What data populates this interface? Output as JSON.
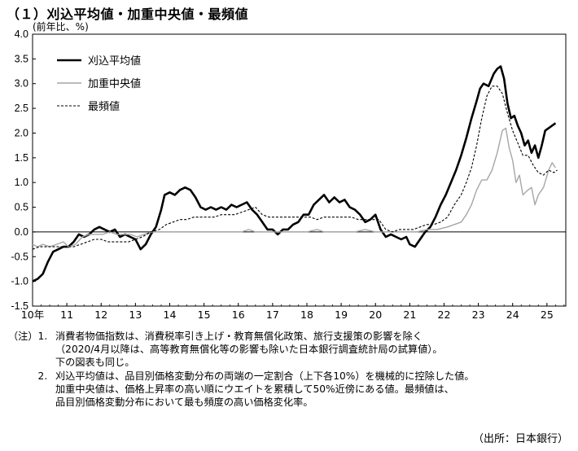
{
  "title": "（１）刈込平均値・加重中央値・最頻値",
  "chart_data": {
    "type": "line",
    "title": "（１）刈込平均値・加重中央値・最頻値",
    "ylabel": "(前年比、%)",
    "xlabel": "",
    "ylim": [
      -1.5,
      4.0
    ],
    "yticks": [
      "4.0",
      "3.5",
      "3.0",
      "2.5",
      "2.0",
      "1.5",
      "1.0",
      "0.5",
      "0.0",
      "-0.5",
      "-1.0",
      "-1.5"
    ],
    "xlim": [
      2010.0,
      2025.55
    ],
    "xtick_labels": [
      {
        "x": 2010,
        "label": "10年"
      },
      {
        "x": 2011,
        "label": "11"
      },
      {
        "x": 2012,
        "label": "12"
      },
      {
        "x": 2013,
        "label": "13"
      },
      {
        "x": 2014,
        "label": "14"
      },
      {
        "x": 2015,
        "label": "15"
      },
      {
        "x": 2016,
        "label": "16"
      },
      {
        "x": 2017,
        "label": "17"
      },
      {
        "x": 2018,
        "label": "18"
      },
      {
        "x": 2019,
        "label": "19"
      },
      {
        "x": 2020,
        "label": "20"
      },
      {
        "x": 2021,
        "label": "21"
      },
      {
        "x": 2022,
        "label": "22"
      },
      {
        "x": 2023,
        "label": "23"
      },
      {
        "x": 2024,
        "label": "24"
      },
      {
        "x": 2025,
        "label": "25"
      }
    ],
    "legend_position": "top-left",
    "grid": false,
    "series": [
      {
        "name": "刈込平均値",
        "color": "#000000",
        "style": "solid-thick",
        "points": [
          [
            2010.0,
            -1.0
          ],
          [
            2010.15,
            -0.95
          ],
          [
            2010.3,
            -0.85
          ],
          [
            2010.45,
            -0.6
          ],
          [
            2010.6,
            -0.4
          ],
          [
            2010.75,
            -0.35
          ],
          [
            2010.9,
            -0.3
          ],
          [
            2011.05,
            -0.3
          ],
          [
            2011.2,
            -0.2
          ],
          [
            2011.35,
            -0.05
          ],
          [
            2011.5,
            -0.1
          ],
          [
            2011.65,
            -0.05
          ],
          [
            2011.8,
            0.05
          ],
          [
            2011.95,
            0.1
          ],
          [
            2012.1,
            0.05
          ],
          [
            2012.25,
            0.0
          ],
          [
            2012.4,
            0.05
          ],
          [
            2012.55,
            -0.1
          ],
          [
            2012.7,
            -0.05
          ],
          [
            2012.85,
            -0.1
          ],
          [
            2013.0,
            -0.15
          ],
          [
            2013.15,
            -0.35
          ],
          [
            2013.3,
            -0.25
          ],
          [
            2013.45,
            -0.05
          ],
          [
            2013.6,
            0.1
          ],
          [
            2013.75,
            0.45
          ],
          [
            2013.85,
            0.75
          ],
          [
            2014.0,
            0.8
          ],
          [
            2014.15,
            0.75
          ],
          [
            2014.3,
            0.85
          ],
          [
            2014.45,
            0.9
          ],
          [
            2014.6,
            0.85
          ],
          [
            2014.75,
            0.7
          ],
          [
            2014.9,
            0.5
          ],
          [
            2015.05,
            0.45
          ],
          [
            2015.2,
            0.5
          ],
          [
            2015.35,
            0.45
          ],
          [
            2015.5,
            0.5
          ],
          [
            2015.65,
            0.45
          ],
          [
            2015.8,
            0.55
          ],
          [
            2015.95,
            0.5
          ],
          [
            2016.1,
            0.55
          ],
          [
            2016.25,
            0.6
          ],
          [
            2016.4,
            0.45
          ],
          [
            2016.55,
            0.35
          ],
          [
            2016.7,
            0.2
          ],
          [
            2016.85,
            0.05
          ],
          [
            2017.0,
            0.05
          ],
          [
            2017.15,
            -0.05
          ],
          [
            2017.3,
            0.05
          ],
          [
            2017.45,
            0.05
          ],
          [
            2017.6,
            0.15
          ],
          [
            2017.75,
            0.2
          ],
          [
            2017.9,
            0.35
          ],
          [
            2018.05,
            0.35
          ],
          [
            2018.2,
            0.55
          ],
          [
            2018.35,
            0.65
          ],
          [
            2018.5,
            0.75
          ],
          [
            2018.65,
            0.6
          ],
          [
            2018.8,
            0.7
          ],
          [
            2018.95,
            0.6
          ],
          [
            2019.1,
            0.65
          ],
          [
            2019.25,
            0.5
          ],
          [
            2019.4,
            0.45
          ],
          [
            2019.55,
            0.35
          ],
          [
            2019.7,
            0.2
          ],
          [
            2019.85,
            0.25
          ],
          [
            2020.0,
            0.35
          ],
          [
            2020.15,
            0.05
          ],
          [
            2020.3,
            -0.1
          ],
          [
            2020.45,
            -0.05
          ],
          [
            2020.6,
            -0.1
          ],
          [
            2020.75,
            -0.15
          ],
          [
            2020.9,
            -0.1
          ],
          [
            2021.0,
            -0.25
          ],
          [
            2021.15,
            -0.3
          ],
          [
            2021.3,
            -0.15
          ],
          [
            2021.45,
            0.0
          ],
          [
            2021.6,
            0.1
          ],
          [
            2021.75,
            0.3
          ],
          [
            2021.9,
            0.55
          ],
          [
            2022.05,
            0.75
          ],
          [
            2022.2,
            1.0
          ],
          [
            2022.35,
            1.25
          ],
          [
            2022.5,
            1.55
          ],
          [
            2022.65,
            1.9
          ],
          [
            2022.8,
            2.3
          ],
          [
            2022.95,
            2.65
          ],
          [
            2023.05,
            2.9
          ],
          [
            2023.15,
            3.0
          ],
          [
            2023.3,
            2.95
          ],
          [
            2023.45,
            3.2
          ],
          [
            2023.55,
            3.3
          ],
          [
            2023.65,
            3.35
          ],
          [
            2023.75,
            3.1
          ],
          [
            2023.85,
            2.6
          ],
          [
            2023.95,
            2.3
          ],
          [
            2024.05,
            2.35
          ],
          [
            2024.15,
            2.15
          ],
          [
            2024.25,
            2.0
          ],
          [
            2024.35,
            1.75
          ],
          [
            2024.45,
            1.85
          ],
          [
            2024.55,
            1.6
          ],
          [
            2024.65,
            1.75
          ],
          [
            2024.75,
            1.5
          ],
          [
            2024.85,
            1.75
          ],
          [
            2024.95,
            2.05
          ],
          [
            2025.05,
            2.1
          ],
          [
            2025.15,
            2.15
          ],
          [
            2025.25,
            2.2
          ]
        ]
      },
      {
        "name": "加重中央値",
        "color": "#a6a6a6",
        "style": "solid-thin",
        "points": [
          [
            2010.0,
            -0.25
          ],
          [
            2010.15,
            -0.3
          ],
          [
            2010.3,
            -0.25
          ],
          [
            2010.5,
            -0.3
          ],
          [
            2010.7,
            -0.25
          ],
          [
            2010.9,
            -0.2
          ],
          [
            2011.05,
            -0.3
          ],
          [
            2011.25,
            -0.25
          ],
          [
            2011.45,
            -0.1
          ],
          [
            2011.65,
            -0.05
          ],
          [
            2011.85,
            -0.05
          ],
          [
            2012.05,
            -0.05
          ],
          [
            2012.25,
            0.0
          ],
          [
            2012.45,
            -0.05
          ],
          [
            2012.65,
            -0.05
          ],
          [
            2012.85,
            -0.05
          ],
          [
            2013.05,
            -0.1
          ],
          [
            2013.25,
            -0.05
          ],
          [
            2013.5,
            0.0
          ],
          [
            2013.75,
            0.0
          ],
          [
            2014.0,
            0.0
          ],
          [
            2014.3,
            0.0
          ],
          [
            2014.6,
            0.0
          ],
          [
            2014.9,
            0.0
          ],
          [
            2015.2,
            0.0
          ],
          [
            2015.5,
            0.0
          ],
          [
            2015.8,
            0.0
          ],
          [
            2016.1,
            0.0
          ],
          [
            2016.3,
            0.05
          ],
          [
            2016.5,
            0.0
          ],
          [
            2016.8,
            0.0
          ],
          [
            2017.1,
            0.0
          ],
          [
            2017.4,
            0.0
          ],
          [
            2017.7,
            0.0
          ],
          [
            2018.0,
            0.0
          ],
          [
            2018.3,
            0.05
          ],
          [
            2018.5,
            0.0
          ],
          [
            2018.8,
            0.0
          ],
          [
            2019.1,
            0.0
          ],
          [
            2019.4,
            0.0
          ],
          [
            2019.7,
            0.05
          ],
          [
            2020.0,
            0.0
          ],
          [
            2020.3,
            0.0
          ],
          [
            2020.6,
            0.0
          ],
          [
            2020.9,
            0.0
          ],
          [
            2021.2,
            0.0
          ],
          [
            2021.5,
            0.05
          ],
          [
            2021.8,
            0.05
          ],
          [
            2022.1,
            0.1
          ],
          [
            2022.3,
            0.15
          ],
          [
            2022.5,
            0.2
          ],
          [
            2022.65,
            0.35
          ],
          [
            2022.8,
            0.55
          ],
          [
            2022.95,
            0.85
          ],
          [
            2023.1,
            1.05
          ],
          [
            2023.25,
            1.05
          ],
          [
            2023.4,
            1.25
          ],
          [
            2023.55,
            1.6
          ],
          [
            2023.7,
            2.05
          ],
          [
            2023.8,
            2.1
          ],
          [
            2023.9,
            1.7
          ],
          [
            2024.0,
            1.45
          ],
          [
            2024.1,
            1.0
          ],
          [
            2024.2,
            1.15
          ],
          [
            2024.3,
            0.75
          ],
          [
            2024.45,
            0.85
          ],
          [
            2024.55,
            0.9
          ],
          [
            2024.65,
            0.55
          ],
          [
            2024.75,
            0.75
          ],
          [
            2024.9,
            0.9
          ],
          [
            2025.05,
            1.25
          ],
          [
            2025.15,
            1.4
          ],
          [
            2025.25,
            1.3
          ]
        ]
      },
      {
        "name": "最頻値",
        "color": "#000000",
        "style": "dashed",
        "points": [
          [
            2010.0,
            -0.35
          ],
          [
            2010.2,
            -0.3
          ],
          [
            2010.4,
            -0.3
          ],
          [
            2010.6,
            -0.3
          ],
          [
            2010.8,
            -0.3
          ],
          [
            2011.0,
            -0.3
          ],
          [
            2011.2,
            -0.3
          ],
          [
            2011.4,
            -0.25
          ],
          [
            2011.6,
            -0.2
          ],
          [
            2011.8,
            -0.15
          ],
          [
            2012.0,
            -0.15
          ],
          [
            2012.2,
            -0.2
          ],
          [
            2012.4,
            -0.2
          ],
          [
            2012.6,
            -0.2
          ],
          [
            2012.8,
            -0.2
          ],
          [
            2013.0,
            -0.15
          ],
          [
            2013.2,
            -0.1
          ],
          [
            2013.45,
            0.0
          ],
          [
            2013.7,
            0.05
          ],
          [
            2013.9,
            0.15
          ],
          [
            2014.1,
            0.2
          ],
          [
            2014.3,
            0.25
          ],
          [
            2014.5,
            0.25
          ],
          [
            2014.7,
            0.3
          ],
          [
            2014.9,
            0.3
          ],
          [
            2015.1,
            0.3
          ],
          [
            2015.3,
            0.3
          ],
          [
            2015.5,
            0.35
          ],
          [
            2015.7,
            0.35
          ],
          [
            2015.9,
            0.35
          ],
          [
            2016.1,
            0.4
          ],
          [
            2016.3,
            0.45
          ],
          [
            2016.5,
            0.5
          ],
          [
            2016.7,
            0.35
          ],
          [
            2016.9,
            0.3
          ],
          [
            2017.1,
            0.3
          ],
          [
            2017.3,
            0.3
          ],
          [
            2017.5,
            0.3
          ],
          [
            2017.7,
            0.3
          ],
          [
            2017.9,
            0.3
          ],
          [
            2018.1,
            0.3
          ],
          [
            2018.3,
            0.25
          ],
          [
            2018.5,
            0.3
          ],
          [
            2018.7,
            0.3
          ],
          [
            2018.9,
            0.3
          ],
          [
            2019.1,
            0.3
          ],
          [
            2019.3,
            0.3
          ],
          [
            2019.5,
            0.25
          ],
          [
            2019.7,
            0.25
          ],
          [
            2019.9,
            0.25
          ],
          [
            2020.1,
            0.25
          ],
          [
            2020.3,
            0.05
          ],
          [
            2020.5,
            0.0
          ],
          [
            2020.7,
            0.05
          ],
          [
            2020.9,
            0.05
          ],
          [
            2021.1,
            0.05
          ],
          [
            2021.3,
            0.1
          ],
          [
            2021.5,
            0.15
          ],
          [
            2021.7,
            0.15
          ],
          [
            2021.9,
            0.2
          ],
          [
            2022.1,
            0.3
          ],
          [
            2022.3,
            0.55
          ],
          [
            2022.5,
            0.75
          ],
          [
            2022.65,
            1.0
          ],
          [
            2022.8,
            1.3
          ],
          [
            2022.95,
            1.75
          ],
          [
            2023.1,
            2.3
          ],
          [
            2023.25,
            2.75
          ],
          [
            2023.4,
            2.95
          ],
          [
            2023.55,
            2.95
          ],
          [
            2023.7,
            2.8
          ],
          [
            2023.85,
            2.4
          ],
          [
            2024.0,
            2.05
          ],
          [
            2024.15,
            1.8
          ],
          [
            2024.3,
            1.55
          ],
          [
            2024.45,
            1.55
          ],
          [
            2024.6,
            1.35
          ],
          [
            2024.75,
            1.2
          ],
          [
            2024.9,
            1.15
          ],
          [
            2025.05,
            1.25
          ],
          [
            2025.2,
            1.2
          ],
          [
            2025.3,
            1.25
          ]
        ]
      }
    ]
  },
  "notes": [
    {
      "head": "（注）1.",
      "lines": [
        "消費者物価指数は、消費税率引き上げ・教育無償化政策、旅行支援策の影響を除く",
        "（2020/4月以降は、高等教育無償化等の影響も除いた日本銀行調査統計局の試算値）。",
        "下の図表も同じ。"
      ]
    },
    {
      "head": "　　　2.",
      "lines": [
        "刈込平均値は、品目別価格変動分布の両端の一定割合（上下各10%）を機械的に控除した値。",
        "加重中央値は、価格上昇率の高い順にウエイトを累積して50%近傍にある値。最頻値は、",
        "品目別価格変動分布において最も頻度の高い価格変化率。"
      ]
    }
  ],
  "source": "（出所：日本銀行）"
}
